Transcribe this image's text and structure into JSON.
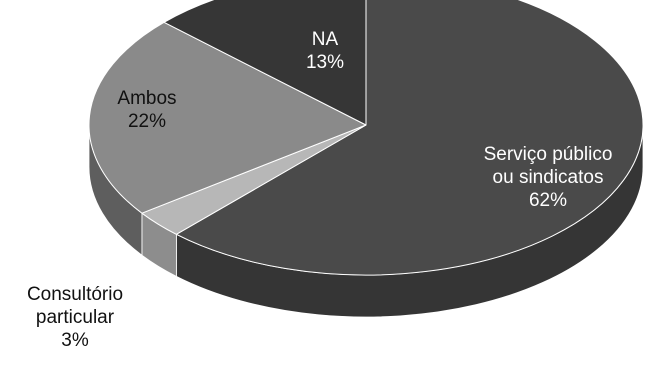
{
  "chart_data": {
    "type": "pie",
    "style": "3d",
    "slices": [
      {
        "label": "Serviço público ou sindicatos",
        "label_lines": [
          "Serviço público",
          "ou sindicatos"
        ],
        "percent_text": "62%",
        "value": 62,
        "color": "#4a4a4a",
        "side_color": "#353535"
      },
      {
        "label": "Consultório particular",
        "label_lines": [
          "Consultório",
          "particular"
        ],
        "percent_text": "3%",
        "value": 3,
        "color": "#b7b7b7",
        "side_color": "#8d8d8d"
      },
      {
        "label": "Ambos",
        "label_lines": [
          "Ambos"
        ],
        "percent_text": "22%",
        "value": 22,
        "color": "#8a8a8a",
        "side_color": "#5e5e5e"
      },
      {
        "label": "NA",
        "label_lines": [
          "NA"
        ],
        "percent_text": "13%",
        "value": 13,
        "color": "#363636",
        "side_color": "#252525"
      }
    ],
    "label_colors": [
      "#ffffff",
      "#111111",
      "#111111",
      "#ffffff"
    ]
  }
}
